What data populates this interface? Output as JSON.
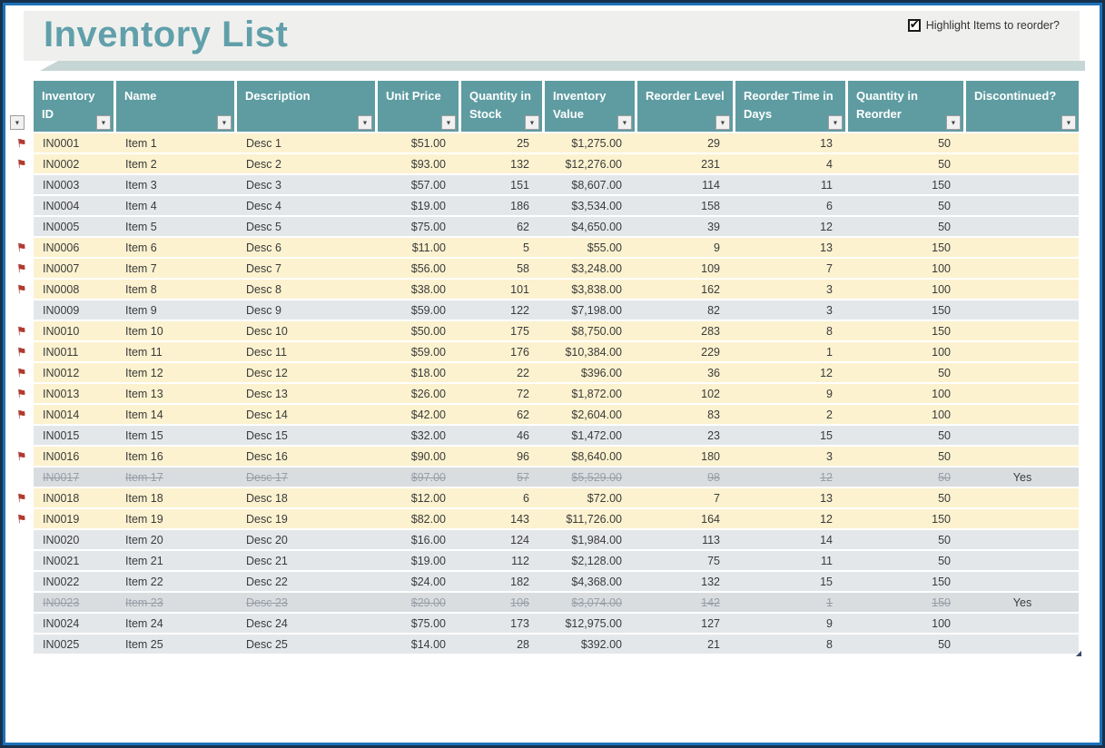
{
  "title": "Inventory List",
  "controls": {
    "highlight_label": "Highlight Items to reorder?",
    "checked": true
  },
  "icons": {
    "flag": "⚑",
    "check": "✔",
    "dropdown": "▼",
    "resize": "◢"
  },
  "colors": {
    "header_teal": "#5E9CA2",
    "title_teal": "#61A0AB",
    "reorder_row": "#FCF2CF",
    "normal_row": "#E4E7EA",
    "discontinued_row": "#DADDE0",
    "border_outer": "#16314E",
    "border_inner": "#1D71B8",
    "flag_red": "#B13A30"
  },
  "table": {
    "headers": [
      "Inventory ID",
      "Name",
      "Description",
      "Unit Price",
      "Quantity in Stock",
      "Inventory Value",
      "Reorder Level",
      "Reorder Time in Days",
      "Quantity in Reorder",
      "Discontinued?"
    ],
    "rows": [
      {
        "id": "IN0001",
        "name": "Item 1",
        "description": "Desc 1",
        "unit_price": "$51.00",
        "qty_stock": "25",
        "inventory_value": "$1,275.00",
        "reorder_level": "29",
        "reorder_days": "13",
        "qty_reorder": "50",
        "discontinued": "",
        "flag": true,
        "state": "reorder"
      },
      {
        "id": "IN0002",
        "name": "Item 2",
        "description": "Desc 2",
        "unit_price": "$93.00",
        "qty_stock": "132",
        "inventory_value": "$12,276.00",
        "reorder_level": "231",
        "reorder_days": "4",
        "qty_reorder": "50",
        "discontinued": "",
        "flag": true,
        "state": "reorder"
      },
      {
        "id": "IN0003",
        "name": "Item 3",
        "description": "Desc 3",
        "unit_price": "$57.00",
        "qty_stock": "151",
        "inventory_value": "$8,607.00",
        "reorder_level": "114",
        "reorder_days": "11",
        "qty_reorder": "150",
        "discontinued": "",
        "flag": false,
        "state": "normal"
      },
      {
        "id": "IN0004",
        "name": "Item 4",
        "description": "Desc 4",
        "unit_price": "$19.00",
        "qty_stock": "186",
        "inventory_value": "$3,534.00",
        "reorder_level": "158",
        "reorder_days": "6",
        "qty_reorder": "50",
        "discontinued": "",
        "flag": false,
        "state": "normal"
      },
      {
        "id": "IN0005",
        "name": "Item 5",
        "description": "Desc 5",
        "unit_price": "$75.00",
        "qty_stock": "62",
        "inventory_value": "$4,650.00",
        "reorder_level": "39",
        "reorder_days": "12",
        "qty_reorder": "50",
        "discontinued": "",
        "flag": false,
        "state": "normal"
      },
      {
        "id": "IN0006",
        "name": "Item 6",
        "description": "Desc 6",
        "unit_price": "$11.00",
        "qty_stock": "5",
        "inventory_value": "$55.00",
        "reorder_level": "9",
        "reorder_days": "13",
        "qty_reorder": "150",
        "discontinued": "",
        "flag": true,
        "state": "reorder"
      },
      {
        "id": "IN0007",
        "name": "Item 7",
        "description": "Desc 7",
        "unit_price": "$56.00",
        "qty_stock": "58",
        "inventory_value": "$3,248.00",
        "reorder_level": "109",
        "reorder_days": "7",
        "qty_reorder": "100",
        "discontinued": "",
        "flag": true,
        "state": "reorder"
      },
      {
        "id": "IN0008",
        "name": "Item 8",
        "description": "Desc 8",
        "unit_price": "$38.00",
        "qty_stock": "101",
        "inventory_value": "$3,838.00",
        "reorder_level": "162",
        "reorder_days": "3",
        "qty_reorder": "100",
        "discontinued": "",
        "flag": true,
        "state": "reorder"
      },
      {
        "id": "IN0009",
        "name": "Item 9",
        "description": "Desc 9",
        "unit_price": "$59.00",
        "qty_stock": "122",
        "inventory_value": "$7,198.00",
        "reorder_level": "82",
        "reorder_days": "3",
        "qty_reorder": "150",
        "discontinued": "",
        "flag": false,
        "state": "normal"
      },
      {
        "id": "IN0010",
        "name": "Item 10",
        "description": "Desc 10",
        "unit_price": "$50.00",
        "qty_stock": "175",
        "inventory_value": "$8,750.00",
        "reorder_level": "283",
        "reorder_days": "8",
        "qty_reorder": "150",
        "discontinued": "",
        "flag": true,
        "state": "reorder"
      },
      {
        "id": "IN0011",
        "name": "Item 11",
        "description": "Desc 11",
        "unit_price": "$59.00",
        "qty_stock": "176",
        "inventory_value": "$10,384.00",
        "reorder_level": "229",
        "reorder_days": "1",
        "qty_reorder": "100",
        "discontinued": "",
        "flag": true,
        "state": "reorder"
      },
      {
        "id": "IN0012",
        "name": "Item 12",
        "description": "Desc 12",
        "unit_price": "$18.00",
        "qty_stock": "22",
        "inventory_value": "$396.00",
        "reorder_level": "36",
        "reorder_days": "12",
        "qty_reorder": "50",
        "discontinued": "",
        "flag": true,
        "state": "reorder"
      },
      {
        "id": "IN0013",
        "name": "Item 13",
        "description": "Desc 13",
        "unit_price": "$26.00",
        "qty_stock": "72",
        "inventory_value": "$1,872.00",
        "reorder_level": "102",
        "reorder_days": "9",
        "qty_reorder": "100",
        "discontinued": "",
        "flag": true,
        "state": "reorder"
      },
      {
        "id": "IN0014",
        "name": "Item 14",
        "description": "Desc 14",
        "unit_price": "$42.00",
        "qty_stock": "62",
        "inventory_value": "$2,604.00",
        "reorder_level": "83",
        "reorder_days": "2",
        "qty_reorder": "100",
        "discontinued": "",
        "flag": true,
        "state": "reorder"
      },
      {
        "id": "IN0015",
        "name": "Item 15",
        "description": "Desc 15",
        "unit_price": "$32.00",
        "qty_stock": "46",
        "inventory_value": "$1,472.00",
        "reorder_level": "23",
        "reorder_days": "15",
        "qty_reorder": "50",
        "discontinued": "",
        "flag": false,
        "state": "normal"
      },
      {
        "id": "IN0016",
        "name": "Item 16",
        "description": "Desc 16",
        "unit_price": "$90.00",
        "qty_stock": "96",
        "inventory_value": "$8,640.00",
        "reorder_level": "180",
        "reorder_days": "3",
        "qty_reorder": "50",
        "discontinued": "",
        "flag": true,
        "state": "reorder"
      },
      {
        "id": "IN0017",
        "name": "Item 17",
        "description": "Desc 17",
        "unit_price": "$97.00",
        "qty_stock": "57",
        "inventory_value": "$5,529.00",
        "reorder_level": "98",
        "reorder_days": "12",
        "qty_reorder": "50",
        "discontinued": "Yes",
        "flag": false,
        "state": "discontinued"
      },
      {
        "id": "IN0018",
        "name": "Item 18",
        "description": "Desc 18",
        "unit_price": "$12.00",
        "qty_stock": "6",
        "inventory_value": "$72.00",
        "reorder_level": "7",
        "reorder_days": "13",
        "qty_reorder": "50",
        "discontinued": "",
        "flag": true,
        "state": "reorder"
      },
      {
        "id": "IN0019",
        "name": "Item 19",
        "description": "Desc 19",
        "unit_price": "$82.00",
        "qty_stock": "143",
        "inventory_value": "$11,726.00",
        "reorder_level": "164",
        "reorder_days": "12",
        "qty_reorder": "150",
        "discontinued": "",
        "flag": true,
        "state": "reorder"
      },
      {
        "id": "IN0020",
        "name": "Item 20",
        "description": "Desc 20",
        "unit_price": "$16.00",
        "qty_stock": "124",
        "inventory_value": "$1,984.00",
        "reorder_level": "113",
        "reorder_days": "14",
        "qty_reorder": "50",
        "discontinued": "",
        "flag": false,
        "state": "normal"
      },
      {
        "id": "IN0021",
        "name": "Item 21",
        "description": "Desc 21",
        "unit_price": "$19.00",
        "qty_stock": "112",
        "inventory_value": "$2,128.00",
        "reorder_level": "75",
        "reorder_days": "11",
        "qty_reorder": "50",
        "discontinued": "",
        "flag": false,
        "state": "normal"
      },
      {
        "id": "IN0022",
        "name": "Item 22",
        "description": "Desc 22",
        "unit_price": "$24.00",
        "qty_stock": "182",
        "inventory_value": "$4,368.00",
        "reorder_level": "132",
        "reorder_days": "15",
        "qty_reorder": "150",
        "discontinued": "",
        "flag": false,
        "state": "normal"
      },
      {
        "id": "IN0023",
        "name": "Item 23",
        "description": "Desc 23",
        "unit_price": "$29.00",
        "qty_stock": "106",
        "inventory_value": "$3,074.00",
        "reorder_level": "142",
        "reorder_days": "1",
        "qty_reorder": "150",
        "discontinued": "Yes",
        "flag": false,
        "state": "discontinued"
      },
      {
        "id": "IN0024",
        "name": "Item 24",
        "description": "Desc 24",
        "unit_price": "$75.00",
        "qty_stock": "173",
        "inventory_value": "$12,975.00",
        "reorder_level": "127",
        "reorder_days": "9",
        "qty_reorder": "100",
        "discontinued": "",
        "flag": false,
        "state": "normal"
      },
      {
        "id": "IN0025",
        "name": "Item 25",
        "description": "Desc 25",
        "unit_price": "$14.00",
        "qty_stock": "28",
        "inventory_value": "$392.00",
        "reorder_level": "21",
        "reorder_days": "8",
        "qty_reorder": "50",
        "discontinued": "",
        "flag": false,
        "state": "normal"
      }
    ]
  }
}
